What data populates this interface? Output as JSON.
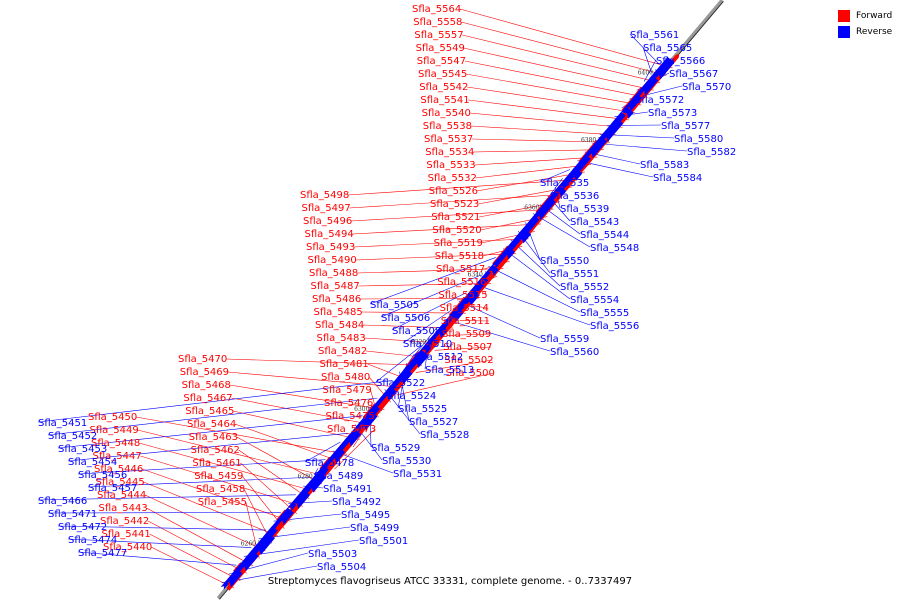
{
  "caption": "Streptomyces flavogriseus ATCC 33331, complete genome. - 0..7337497",
  "legend": [
    {
      "label": "Forward",
      "color": "#ff0000"
    },
    {
      "label": "Reverse",
      "color": "#0000ff"
    }
  ],
  "colors": {
    "forward": "#ff0000",
    "reverse": "#0000ff",
    "axis": "#999999",
    "axis_shadow": "#222222"
  },
  "scale_ticks": [
    "6260 kbp",
    "6280 kbp",
    "6300 kbp",
    "6320 kbp",
    "6340 kbp",
    "6360 kbp",
    "6380 kbp",
    "6400 kbp"
  ],
  "forward_genes": [
    "Sfla_5440",
    "Sfla_5441",
    "Sfla_5442",
    "Sfla_5443",
    "Sfla_5444",
    "Sfla_5445",
    "Sfla_5446",
    "Sfla_5447",
    "Sfla_5448",
    "Sfla_5449",
    "Sfla_5450",
    "Sfla_5455",
    "Sfla_5458",
    "Sfla_5459",
    "Sfla_5461",
    "Sfla_5462",
    "Sfla_5463",
    "Sfla_5464",
    "Sfla_5465",
    "Sfla_5467",
    "Sfla_5468",
    "Sfla_5469",
    "Sfla_5470",
    "Sfla_5473",
    "Sfla_5475",
    "Sfla_5476",
    "Sfla_5479",
    "Sfla_5480",
    "Sfla_5481",
    "Sfla_5482",
    "Sfla_5483",
    "Sfla_5484",
    "Sfla_5485",
    "Sfla_5486",
    "Sfla_5487",
    "Sfla_5488",
    "Sfla_5490",
    "Sfla_5493",
    "Sfla_5494",
    "Sfla_5496",
    "Sfla_5497",
    "Sfla_5498",
    "Sfla_5500",
    "Sfla_5502",
    "Sfla_5507",
    "Sfla_5509",
    "Sfla_5511",
    "Sfla_5514",
    "Sfla_5515",
    "Sfla_5516",
    "Sfla_5517",
    "Sfla_5518",
    "Sfla_5519",
    "Sfla_5520",
    "Sfla_5521",
    "Sfla_5523",
    "Sfla_5526",
    "Sfla_5532",
    "Sfla_5533",
    "Sfla_5534",
    "Sfla_5537",
    "Sfla_5538",
    "Sfla_5540",
    "Sfla_5541",
    "Sfla_5542",
    "Sfla_5545",
    "Sfla_5547",
    "Sfla_5549",
    "Sfla_5557",
    "Sfla_5558",
    "Sfla_5564"
  ],
  "reverse_genes": [
    "Sfla_5451",
    "Sfla_5452",
    "Sfla_5453",
    "Sfla_5454",
    "Sfla_5456",
    "Sfla_5457",
    "Sfla_5466",
    "Sfla_5471",
    "Sfla_5472",
    "Sfla_5474",
    "Sfla_5477",
    "Sfla_5478",
    "Sfla_5489",
    "Sfla_5491",
    "Sfla_5492",
    "Sfla_5495",
    "Sfla_5499",
    "Sfla_5501",
    "Sfla_5503",
    "Sfla_5504",
    "Sfla_5505",
    "Sfla_5506",
    "Sfla_5508",
    "Sfla_5510",
    "Sfla_5512",
    "Sfla_5513",
    "Sfla_5522",
    "Sfla_5524",
    "Sfla_5525",
    "Sfla_5527",
    "Sfla_5528",
    "Sfla_5529",
    "Sfla_5530",
    "Sfla_5531",
    "Sfla_5535",
    "Sfla_5536",
    "Sfla_5539",
    "Sfla_5543",
    "Sfla_5544",
    "Sfla_5548",
    "Sfla_5550",
    "Sfla_5551",
    "Sfla_5552",
    "Sfla_5554",
    "Sfla_5555",
    "Sfla_5556",
    "Sfla_5559",
    "Sfla_5560",
    "Sfla_5561",
    "Sfla_5565",
    "Sfla_5566",
    "Sfla_5567",
    "Sfla_5570",
    "Sfla_5572",
    "Sfla_5573",
    "Sfla_5577",
    "Sfla_5580",
    "Sfla_5582",
    "Sfla_5583",
    "Sfla_5584"
  ]
}
